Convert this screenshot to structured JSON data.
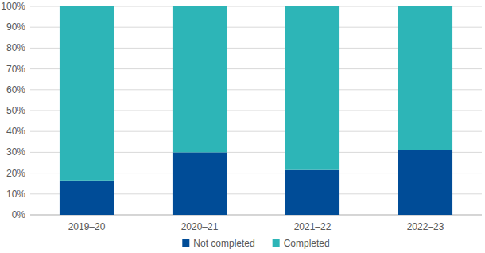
{
  "chart_data": {
    "type": "bar",
    "stacked": true,
    "grid": true,
    "legend": "bottom",
    "categories": [
      "2019–20",
      "2020–21",
      "2021–22",
      "2022–23"
    ],
    "series": [
      {
        "name": "Not completed",
        "color": "#004c97",
        "values": [
          16.5,
          30,
          21.5,
          31
        ]
      },
      {
        "name": "Completed",
        "color": "#2db5b7",
        "values": [
          83.5,
          70,
          78.5,
          69
        ]
      }
    ],
    "ylim": [
      0,
      100
    ],
    "yticks": [
      {
        "value": 0,
        "label": "0%"
      },
      {
        "value": 10,
        "label": "10%"
      },
      {
        "value": 20,
        "label": "20%"
      },
      {
        "value": 30,
        "label": "30%"
      },
      {
        "value": 40,
        "label": "40%"
      },
      {
        "value": 50,
        "label": "50%"
      },
      {
        "value": 60,
        "label": "60%"
      },
      {
        "value": 70,
        "label": "70%"
      },
      {
        "value": 80,
        "label": "80%"
      },
      {
        "value": 90,
        "label": "90%"
      },
      {
        "value": 100,
        "label": "100%"
      }
    ]
  }
}
